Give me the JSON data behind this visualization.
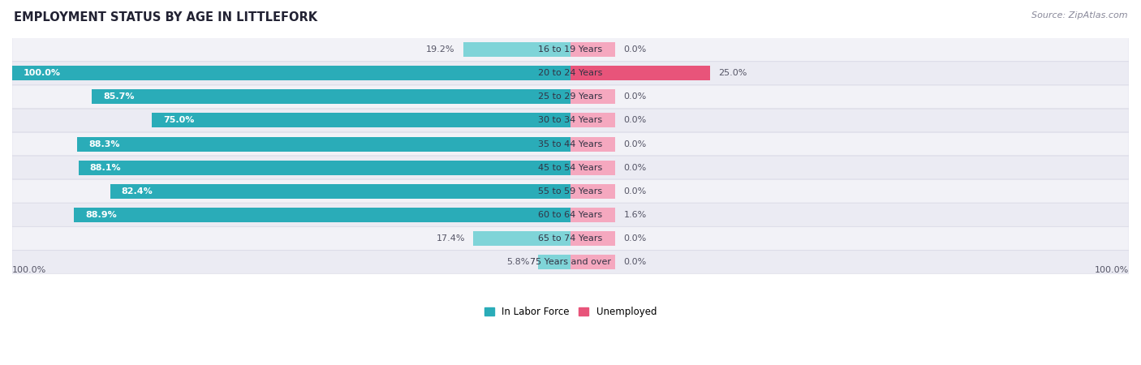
{
  "title": "EMPLOYMENT STATUS BY AGE IN LITTLEFORK",
  "source": "Source: ZipAtlas.com",
  "categories": [
    "16 to 19 Years",
    "20 to 24 Years",
    "25 to 29 Years",
    "30 to 34 Years",
    "35 to 44 Years",
    "45 to 54 Years",
    "55 to 59 Years",
    "60 to 64 Years",
    "65 to 74 Years",
    "75 Years and over"
  ],
  "labor_force": [
    19.2,
    100.0,
    85.7,
    75.0,
    88.3,
    88.1,
    82.4,
    88.9,
    17.4,
    5.8
  ],
  "unemployed": [
    0.0,
    25.0,
    0.0,
    0.0,
    0.0,
    0.0,
    0.0,
    1.6,
    0.0,
    0.0
  ],
  "unemployed_display": [
    0.0,
    25.0,
    0.0,
    0.0,
    0.0,
    0.0,
    0.0,
    1.6,
    0.0,
    0.0
  ],
  "labor_force_color_high": "#2aacb8",
  "labor_force_color_low": "#7fd4d8",
  "unemployed_color_high": "#e8547a",
  "unemployed_color_low": "#f5a8bf",
  "bar_bg_odd": "#f2f2f7",
  "bar_bg_even": "#ebebf3",
  "bar_height": 0.62,
  "min_unemployed_display": 8.0,
  "max_value": 100.0,
  "legend_labor": "In Labor Force",
  "legend_unemployed": "Unemployed",
  "left_axis_label": "100.0%",
  "right_axis_label": "100.0%",
  "label_threshold": 30.0
}
